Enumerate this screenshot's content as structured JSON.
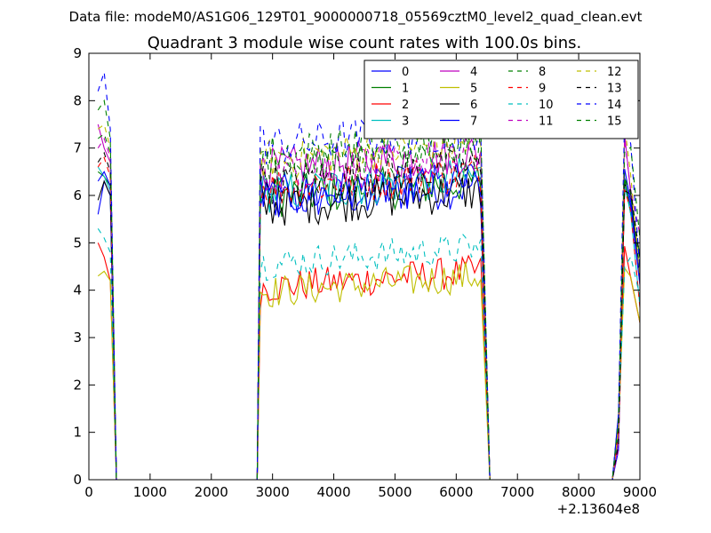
{
  "figure": {
    "suptitle": "Data file: modeM0/AS1G06_129T01_9000000718_05569cztM0_level2_quad_clean.evt"
  },
  "chart_data": {
    "type": "line",
    "title": "Quadrant 3 module wise count rates with 100.0s bins.",
    "xlabel": "",
    "ylabel": "",
    "x_offset_label": "+2.13604e8",
    "xlim": [
      0,
      9000
    ],
    "ylim": [
      0,
      9
    ],
    "xticks": [
      0,
      1000,
      2000,
      3000,
      4000,
      5000,
      6000,
      7000,
      8000,
      9000
    ],
    "yticks": [
      0,
      1,
      2,
      3,
      4,
      5,
      6,
      7,
      8,
      9
    ],
    "grid": false,
    "legend_position": "top-right",
    "legend_columns": 4,
    "segments": [
      {
        "start": 150,
        "end": 350,
        "edge_before": null,
        "edge_after": 450
      },
      {
        "start": 2800,
        "end": 6400,
        "edge_before": 2750,
        "edge_after": 6550
      },
      {
        "start": 8650,
        "end": 9000,
        "edge_before": 8550,
        "edge_after": null
      }
    ],
    "series": [
      {
        "name": "0",
        "color": "#0000ff",
        "dash": "solid",
        "level": 6.0,
        "pre": [
          5.6,
          6.3,
          6.0
        ]
      },
      {
        "name": "1",
        "color": "#008000",
        "dash": "solid",
        "level": 6.1,
        "pre": [
          6.5,
          6.4,
          6.2
        ]
      },
      {
        "name": "2",
        "color": "#ff0000",
        "dash": "solid",
        "level": 4.2,
        "pre": [
          5.0,
          4.7,
          4.2
        ]
      },
      {
        "name": "3",
        "color": "#00bfbf",
        "dash": "solid",
        "level": 6.2,
        "pre": [
          6.6,
          6.4,
          6.1
        ]
      },
      {
        "name": "4",
        "color": "#bf00bf",
        "dash": "solid",
        "level": 6.7,
        "pre": [
          7.5,
          7.0,
          6.7
        ]
      },
      {
        "name": "5",
        "color": "#bfbf00",
        "dash": "solid",
        "level": 4.1,
        "pre": [
          4.3,
          4.4,
          4.2
        ]
      },
      {
        "name": "6",
        "color": "#000000",
        "dash": "solid",
        "level": 5.9,
        "pre": [
          5.9,
          6.3,
          6.0
        ]
      },
      {
        "name": "7",
        "color": "#0000ff",
        "dash": "solid",
        "level": 6.1,
        "pre": [
          6.3,
          6.5,
          6.2
        ]
      },
      {
        "name": "8",
        "color": "#008000",
        "dash": "dashed",
        "level": 6.7,
        "pre": [
          7.2,
          7.3,
          6.9
        ]
      },
      {
        "name": "9",
        "color": "#ff0000",
        "dash": "dashed",
        "level": 6.3,
        "pre": [
          6.6,
          6.8,
          6.4
        ]
      },
      {
        "name": "10",
        "color": "#00bfbf",
        "dash": "dashed",
        "level": 4.7,
        "pre": [
          5.3,
          5.1,
          4.8
        ]
      },
      {
        "name": "11",
        "color": "#bf00bf",
        "dash": "dashed",
        "level": 6.6,
        "pre": [
          7.0,
          7.2,
          6.8
        ]
      },
      {
        "name": "12",
        "color": "#bfbf00",
        "dash": "dashed",
        "level": 6.9,
        "pre": [
          7.4,
          7.5,
          7.0
        ]
      },
      {
        "name": "13",
        "color": "#000000",
        "dash": "dashed",
        "level": 6.4,
        "pre": [
          6.7,
          6.9,
          6.5
        ]
      },
      {
        "name": "14",
        "color": "#0000ff",
        "dash": "dashed",
        "level": 7.2,
        "pre": [
          8.2,
          8.6,
          7.4
        ]
      },
      {
        "name": "15",
        "color": "#008000",
        "dash": "dashed",
        "level": 7.0,
        "pre": [
          7.8,
          8.0,
          7.2
        ]
      }
    ]
  }
}
